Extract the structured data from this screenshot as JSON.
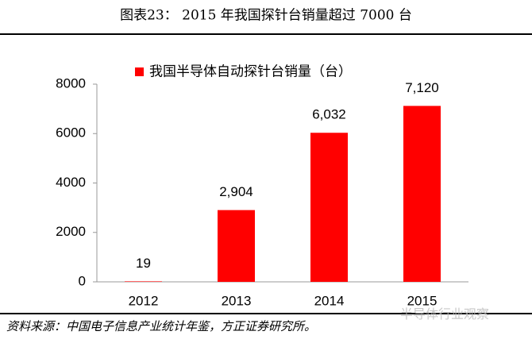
{
  "header": {
    "title": "图表23：  2015 年我国探针台销量超过 7000 台"
  },
  "chart_data": {
    "type": "bar",
    "categories": [
      "2012",
      "2013",
      "2014",
      "2015"
    ],
    "series": [
      {
        "name": "我国半导体自动探针台销量（台）",
        "color": "#ff0000",
        "values": [
          19,
          2904,
          6032,
          7120
        ],
        "value_labels": [
          "19",
          "2,904",
          "6,032",
          "7,120"
        ]
      }
    ],
    "ylim": [
      0,
      8000
    ],
    "yticks": [
      0,
      2000,
      4000,
      6000,
      8000
    ],
    "grid": false,
    "legend": "top"
  },
  "footer": {
    "source": "资料来源：中国电子信息产业统计年鉴，方正证券研究所。",
    "watermark": "半导体行业观察"
  }
}
